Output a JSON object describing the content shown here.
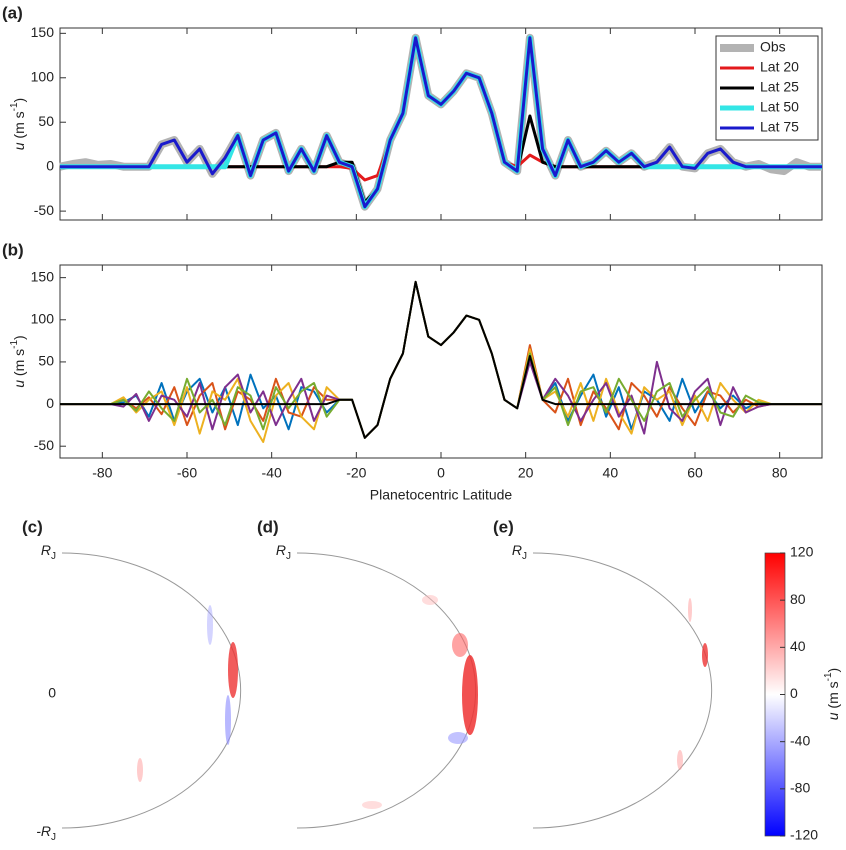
{
  "chart_data": [
    {
      "type": "line",
      "title": "(a)",
      "ylabel": [
        "u",
        " (m s",
        "-1",
        ")"
      ],
      "xlim": [
        -90,
        90
      ],
      "ylim": [
        -60,
        156
      ],
      "xticks": [
        -80,
        -60,
        -40,
        -20,
        0,
        20,
        40,
        60,
        80
      ],
      "xtick_labels": false,
      "yticks": [
        -50,
        0,
        50,
        100,
        150
      ],
      "legend": "top-right",
      "x": [
        -90,
        -87,
        -84,
        -81,
        -78,
        -75,
        -72,
        -69,
        -66,
        -63,
        -60,
        -57,
        -54,
        -51,
        -48,
        -45,
        -42,
        -39,
        -36,
        -33,
        -30,
        -27,
        -24,
        -21,
        -18,
        -15,
        -12,
        -9,
        -6,
        -3,
        0,
        3,
        6,
        9,
        12,
        15,
        18,
        21,
        24,
        27,
        30,
        33,
        36,
        39,
        42,
        45,
        48,
        51,
        54,
        57,
        60,
        63,
        66,
        69,
        72,
        75,
        78,
        81,
        84,
        87,
        90
      ],
      "series": [
        {
          "name": "Obs",
          "color": "#b3b3b3",
          "values": [
            0,
            3,
            5,
            2,
            3,
            0,
            0,
            0,
            25,
            30,
            5,
            20,
            -8,
            10,
            35,
            -10,
            30,
            38,
            -5,
            20,
            -5,
            35,
            5,
            0,
            -45,
            -25,
            30,
            60,
            145,
            80,
            70,
            85,
            105,
            100,
            60,
            5,
            -5,
            145,
            20,
            -10,
            30,
            0,
            5,
            18,
            5,
            15,
            0,
            5,
            22,
            0,
            -2,
            15,
            20,
            5,
            0,
            3,
            -3,
            -5,
            5,
            0,
            0
          ]
        },
        {
          "name": "Lat 20",
          "color": "#e31a1c",
          "values": [
            0,
            0,
            0,
            0,
            0,
            0,
            0,
            0,
            0,
            0,
            0,
            0,
            0,
            0,
            0,
            0,
            0,
            0,
            0,
            0,
            0,
            0,
            0,
            -2,
            -15,
            -10,
            30,
            60,
            145,
            80,
            70,
            85,
            105,
            100,
            60,
            5,
            0,
            13,
            5,
            0,
            0,
            0,
            0,
            0,
            0,
            0,
            0,
            0,
            0,
            0,
            0,
            0,
            0,
            0,
            0,
            0,
            0,
            0,
            0,
            0,
            0
          ]
        },
        {
          "name": "Lat 25",
          "color": "#000000",
          "values": [
            0,
            0,
            0,
            0,
            0,
            0,
            0,
            0,
            0,
            0,
            0,
            0,
            0,
            0,
            0,
            0,
            0,
            0,
            0,
            0,
            0,
            0,
            5,
            5,
            -40,
            -25,
            30,
            60,
            145,
            80,
            70,
            85,
            105,
            100,
            60,
            5,
            -5,
            57,
            5,
            0,
            0,
            0,
            0,
            0,
            0,
            0,
            0,
            0,
            0,
            0,
            0,
            0,
            0,
            0,
            0,
            0,
            0,
            0,
            0,
            0,
            0
          ]
        },
        {
          "name": "Lat 50",
          "color": "#33e6e6",
          "values": [
            0,
            0,
            0,
            0,
            0,
            0,
            0,
            0,
            0,
            0,
            0,
            0,
            0,
            0,
            35,
            -10,
            30,
            38,
            -5,
            20,
            -5,
            35,
            5,
            0,
            -45,
            -25,
            30,
            60,
            145,
            80,
            70,
            85,
            105,
            100,
            60,
            5,
            -5,
            145,
            20,
            -10,
            30,
            0,
            5,
            18,
            5,
            15,
            0,
            0,
            0,
            0,
            0,
            0,
            0,
            0,
            0,
            0,
            0,
            0,
            0,
            0,
            0
          ]
        },
        {
          "name": "Lat 75",
          "color": "#1a1acc",
          "values": [
            0,
            0,
            0,
            0,
            0,
            0,
            0,
            0,
            25,
            30,
            5,
            20,
            -8,
            10,
            35,
            -10,
            30,
            38,
            -5,
            20,
            -5,
            35,
            5,
            0,
            -45,
            -25,
            30,
            60,
            145,
            80,
            70,
            85,
            105,
            100,
            60,
            5,
            -5,
            145,
            20,
            -10,
            30,
            0,
            5,
            18,
            5,
            15,
            0,
            5,
            22,
            0,
            -2,
            15,
            20,
            5,
            0,
            0,
            0,
            0,
            0,
            0,
            0
          ]
        }
      ]
    },
    {
      "type": "line",
      "title": "(b)",
      "ylabel": [
        "u",
        " (m s",
        "-1",
        ")"
      ],
      "xlabel": "Planetocentric Latitude",
      "xlim": [
        -90,
        90
      ],
      "ylim": [
        -64,
        165
      ],
      "xticks": [
        -80,
        -60,
        -40,
        -20,
        0,
        20,
        40,
        60,
        80
      ],
      "xtick_labels": true,
      "yticks": [
        -50,
        0,
        50,
        100,
        150
      ],
      "x": [
        -90,
        -87,
        -84,
        -81,
        -78,
        -75,
        -72,
        -69,
        -66,
        -63,
        -60,
        -57,
        -54,
        -51,
        -48,
        -45,
        -42,
        -39,
        -36,
        -33,
        -30,
        -27,
        -24,
        -21,
        -18,
        -15,
        -12,
        -9,
        -6,
        -3,
        0,
        3,
        6,
        9,
        12,
        15,
        18,
        21,
        24,
        27,
        30,
        33,
        36,
        39,
        42,
        45,
        48,
        51,
        54,
        57,
        60,
        63,
        66,
        69,
        72,
        75,
        78,
        81,
        84,
        87,
        90
      ],
      "series": [
        {
          "color": "#0072bd",
          "values": [
            0,
            0,
            0,
            0,
            0,
            2,
            10,
            -15,
            25,
            -20,
            15,
            30,
            -10,
            20,
            -25,
            35,
            -5,
            10,
            -30,
            20,
            15,
            -10,
            5,
            5,
            -40,
            -25,
            30,
            60,
            145,
            80,
            70,
            85,
            105,
            100,
            60,
            5,
            -5,
            55,
            5,
            25,
            -20,
            10,
            35,
            -15,
            20,
            -30,
            15,
            5,
            -20,
            30,
            -10,
            15,
            -5,
            10,
            -5,
            2,
            0,
            0,
            0,
            0,
            0
          ]
        },
        {
          "color": "#d95319",
          "values": [
            0,
            0,
            0,
            0,
            0,
            5,
            -5,
            8,
            -12,
            20,
            -25,
            10,
            25,
            -30,
            15,
            5,
            -20,
            30,
            -10,
            -15,
            20,
            5,
            5,
            5,
            -40,
            -25,
            30,
            60,
            145,
            80,
            70,
            85,
            105,
            100,
            60,
            5,
            -5,
            70,
            5,
            -10,
            30,
            -25,
            15,
            -5,
            -30,
            25,
            10,
            -15,
            20,
            -5,
            -25,
            15,
            10,
            -10,
            5,
            -3,
            0,
            0,
            0,
            0,
            0
          ]
        },
        {
          "color": "#edb120",
          "values": [
            0,
            0,
            0,
            0,
            0,
            8,
            -10,
            5,
            15,
            -25,
            20,
            -35,
            15,
            5,
            30,
            -20,
            -45,
            10,
            25,
            -15,
            -30,
            20,
            5,
            5,
            -40,
            -25,
            30,
            60,
            145,
            80,
            70,
            85,
            105,
            100,
            60,
            5,
            -5,
            65,
            5,
            15,
            -15,
            25,
            -20,
            30,
            -10,
            -35,
            20,
            5,
            15,
            -25,
            10,
            -20,
            25,
            5,
            -10,
            5,
            0,
            0,
            0,
            0,
            0
          ]
        },
        {
          "color": "#7e2f8e",
          "values": [
            0,
            0,
            0,
            0,
            0,
            -3,
            12,
            -20,
            10,
            5,
            -15,
            25,
            -30,
            20,
            35,
            -10,
            15,
            -25,
            5,
            30,
            -20,
            10,
            5,
            5,
            -40,
            -25,
            30,
            60,
            145,
            80,
            70,
            85,
            105,
            100,
            60,
            5,
            -5,
            50,
            5,
            30,
            10,
            -20,
            5,
            25,
            -15,
            10,
            -35,
            50,
            -5,
            -20,
            15,
            30,
            -25,
            20,
            -10,
            -3,
            0,
            0,
            0,
            0,
            0
          ]
        },
        {
          "color": "#77ac30",
          "values": [
            0,
            0,
            0,
            0,
            0,
            5,
            -8,
            15,
            -5,
            -20,
            30,
            -10,
            5,
            -25,
            20,
            10,
            -30,
            20,
            -5,
            15,
            25,
            -15,
            5,
            5,
            -40,
            -25,
            30,
            60,
            145,
            80,
            70,
            85,
            105,
            100,
            60,
            5,
            -5,
            60,
            5,
            20,
            -25,
            15,
            20,
            -10,
            30,
            5,
            -20,
            15,
            25,
            -15,
            5,
            20,
            -10,
            -15,
            10,
            2,
            0,
            0,
            0,
            0,
            0
          ]
        },
        {
          "color": "#000000",
          "values": [
            0,
            0,
            0,
            0,
            0,
            0,
            0,
            0,
            0,
            0,
            0,
            0,
            0,
            0,
            0,
            0,
            0,
            0,
            0,
            0,
            0,
            0,
            5,
            5,
            -40,
            -25,
            30,
            60,
            145,
            80,
            70,
            85,
            105,
            100,
            60,
            5,
            -5,
            57,
            5,
            0,
            0,
            0,
            0,
            0,
            0,
            0,
            0,
            0,
            0,
            0,
            0,
            0,
            0,
            0,
            0,
            0,
            0,
            0,
            0,
            0,
            0
          ]
        }
      ]
    }
  ],
  "panels": [
    {
      "label": "(c)",
      "top": "R",
      "top_sub": "J",
      "mid": "0",
      "bottom": "-R",
      "bottom_sub": "J"
    },
    {
      "label": "(d)",
      "top": "R",
      "top_sub": "J"
    },
    {
      "label": "(e)",
      "top": "R",
      "top_sub": "J"
    }
  ],
  "colorbar": {
    "label": [
      "u",
      " (m s",
      "-1",
      ")"
    ],
    "lim": [
      -120,
      120
    ],
    "ticks": [
      120,
      80,
      40,
      0,
      -40,
      -80,
      -120
    ]
  }
}
